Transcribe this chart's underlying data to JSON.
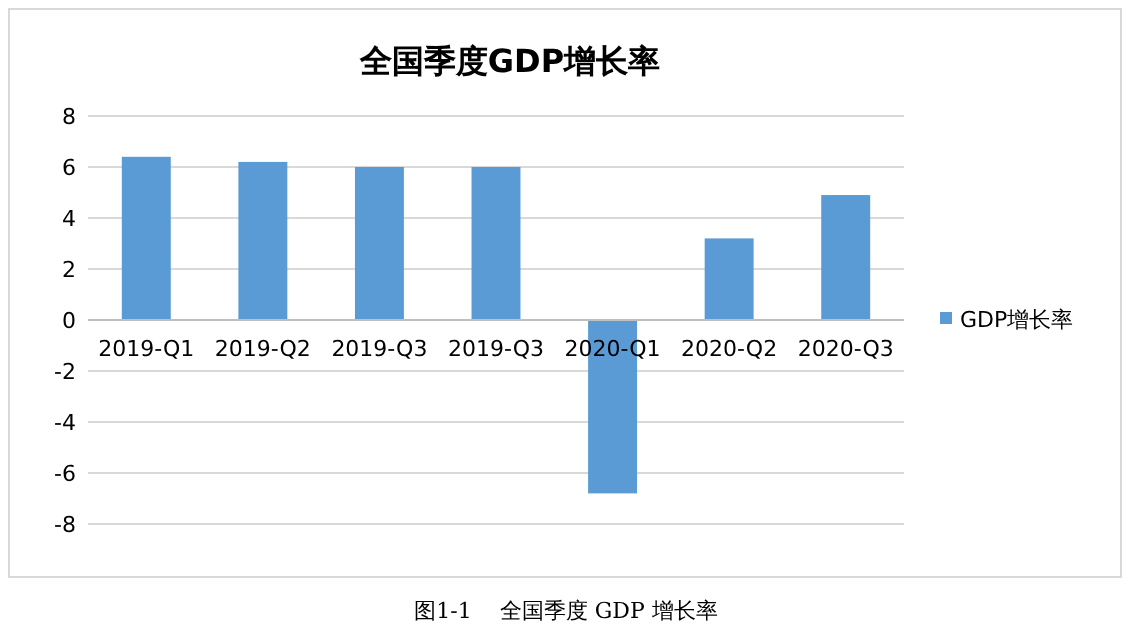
{
  "chart_data": {
    "type": "bar",
    "title": "全国季度GDP增长率",
    "categories": [
      "2019-Q1",
      "2019-Q2",
      "2019-Q3",
      "2019-Q3",
      "2020-Q1",
      "2020-Q2",
      "2020-Q3"
    ],
    "series": [
      {
        "name": "GDP增长率",
        "color": "#5b9bd5",
        "values": [
          6.4,
          6.2,
          6.0,
          6.0,
          -6.8,
          3.2,
          4.9
        ]
      }
    ],
    "ylim": [
      -8,
      8
    ],
    "yticks": [
      -8,
      -6,
      -4,
      -2,
      0,
      2,
      4,
      6,
      8
    ],
    "grid": "y",
    "legend": "right",
    "annotations": [
      "图1-1    全国季度 GDP 增长率"
    ]
  }
}
